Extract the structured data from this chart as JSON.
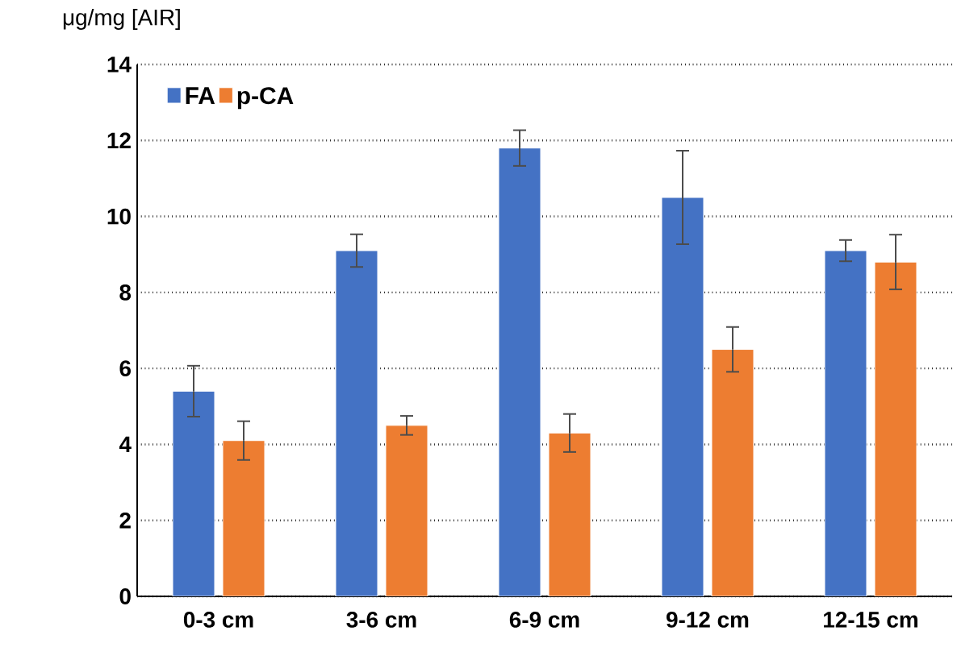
{
  "chart_data": {
    "type": "bar",
    "ylabel": "μg/mg [AIR]",
    "categories": [
      "0-3 cm",
      "3-6 cm",
      "6-9 cm",
      "9-12 cm",
      "12-15 cm"
    ],
    "series": [
      {
        "name": "FA",
        "color": "#4472c4",
        "values": [
          5.4,
          9.1,
          11.8,
          10.5,
          9.1
        ],
        "errors": [
          0.67,
          0.43,
          0.47,
          1.23,
          0.28
        ]
      },
      {
        "name": "p-CA",
        "color": "#ed7d31",
        "values": [
          4.1,
          4.5,
          4.3,
          6.5,
          8.8
        ],
        "errors": [
          0.51,
          0.25,
          0.5,
          0.59,
          0.72
        ]
      }
    ],
    "ylim": [
      0,
      14
    ],
    "yticks": [
      0,
      2,
      4,
      6,
      8,
      10,
      12,
      14
    ],
    "grid": "y",
    "legend": "top left"
  }
}
